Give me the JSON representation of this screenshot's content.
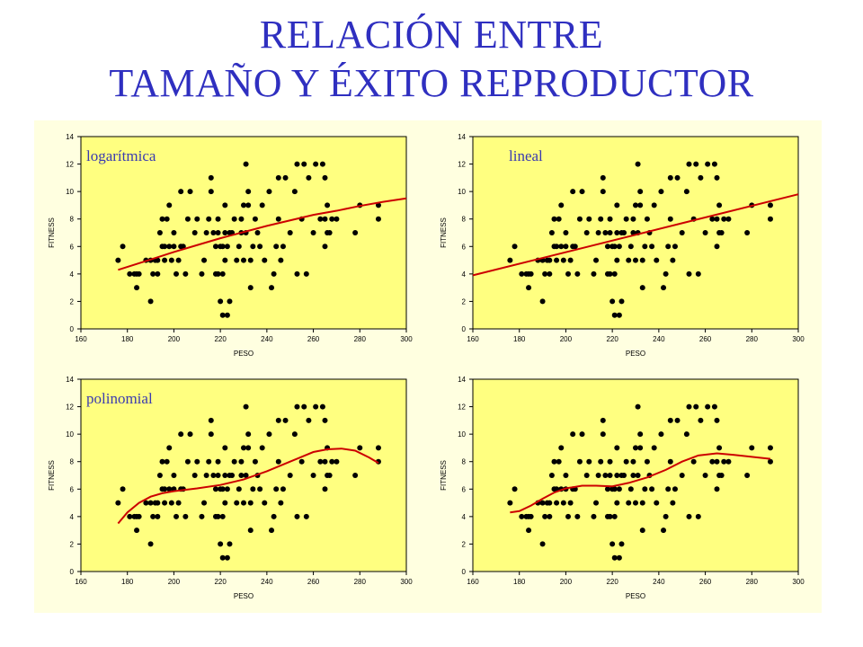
{
  "title": {
    "line1": "RELACIÓN ENTRE",
    "line2": "TAMAÑO Y ÉXITO REPRODUCTOR"
  },
  "colors": {
    "title": "#2f2fc0",
    "plot_background": "#ffff80",
    "panel_background": "#ffffe0",
    "points": "#000000",
    "fit_line": "#cc0000"
  },
  "scatter_points": [
    [
      176,
      5
    ],
    [
      178,
      6
    ],
    [
      181,
      4
    ],
    [
      183,
      4
    ],
    [
      184,
      3
    ],
    [
      184,
      4
    ],
    [
      185,
      4
    ],
    [
      188,
      5
    ],
    [
      190,
      2
    ],
    [
      190,
      5
    ],
    [
      191,
      4
    ],
    [
      192,
      5
    ],
    [
      193,
      4
    ],
    [
      193,
      5
    ],
    [
      194,
      7
    ],
    [
      195,
      6
    ],
    [
      195,
      8
    ],
    [
      196,
      5
    ],
    [
      196,
      6
    ],
    [
      197,
      8
    ],
    [
      198,
      6
    ],
    [
      198,
      9
    ],
    [
      199,
      5
    ],
    [
      200,
      6
    ],
    [
      200,
      7
    ],
    [
      201,
      4
    ],
    [
      202,
      5
    ],
    [
      203,
      6
    ],
    [
      203,
      10
    ],
    [
      204,
      6
    ],
    [
      205,
      4
    ],
    [
      206,
      8
    ],
    [
      207,
      10
    ],
    [
      209,
      7
    ],
    [
      210,
      8
    ],
    [
      212,
      4
    ],
    [
      213,
      5
    ],
    [
      214,
      7
    ],
    [
      215,
      8
    ],
    [
      216,
      10
    ],
    [
      216,
      11
    ],
    [
      217,
      7
    ],
    [
      218,
      4
    ],
    [
      218,
      6
    ],
    [
      219,
      4
    ],
    [
      219,
      7
    ],
    [
      219,
      8
    ],
    [
      220,
      2
    ],
    [
      220,
      6
    ],
    [
      221,
      1
    ],
    [
      221,
      4
    ],
    [
      221,
      6
    ],
    [
      222,
      5
    ],
    [
      222,
      7
    ],
    [
      222,
      9
    ],
    [
      223,
      1
    ],
    [
      223,
      6
    ],
    [
      224,
      2
    ],
    [
      224,
      7
    ],
    [
      225,
      7
    ],
    [
      226,
      8
    ],
    [
      227,
      5
    ],
    [
      228,
      6
    ],
    [
      229,
      7
    ],
    [
      229,
      8
    ],
    [
      230,
      5
    ],
    [
      230,
      9
    ],
    [
      231,
      7
    ],
    [
      231,
      12
    ],
    [
      232,
      9
    ],
    [
      232,
      10
    ],
    [
      233,
      3
    ],
    [
      233,
      5
    ],
    [
      234,
      6
    ],
    [
      235,
      8
    ],
    [
      236,
      7
    ],
    [
      237,
      6
    ],
    [
      238,
      9
    ],
    [
      239,
      5
    ],
    [
      241,
      10
    ],
    [
      242,
      3
    ],
    [
      243,
      4
    ],
    [
      244,
      6
    ],
    [
      245,
      8
    ],
    [
      245,
      11
    ],
    [
      246,
      5
    ],
    [
      247,
      6
    ],
    [
      248,
      11
    ],
    [
      250,
      7
    ],
    [
      252,
      10
    ],
    [
      253,
      4
    ],
    [
      253,
      12
    ],
    [
      255,
      8
    ],
    [
      256,
      12
    ],
    [
      257,
      4
    ],
    [
      258,
      11
    ],
    [
      260,
      7
    ],
    [
      261,
      12
    ],
    [
      263,
      8
    ],
    [
      264,
      12
    ],
    [
      265,
      11
    ],
    [
      265,
      8
    ],
    [
      265,
      6
    ],
    [
      266,
      7
    ],
    [
      266,
      9
    ],
    [
      267,
      7
    ],
    [
      268,
      8
    ],
    [
      270,
      8
    ],
    [
      278,
      7
    ],
    [
      280,
      9
    ],
    [
      288,
      8
    ],
    [
      288,
      9
    ]
  ],
  "chart_data": [
    {
      "type": "scatter",
      "title": "logarítmica",
      "xlabel": "PESO",
      "ylabel": "FITNESS",
      "xlim": [
        160,
        300
      ],
      "ylim": [
        0,
        14
      ],
      "x_ticks": [
        "160",
        "180",
        "200",
        "220",
        "240",
        "260",
        "280",
        "300"
      ],
      "y_ticks": [
        "0",
        "2",
        "4",
        "6",
        "8",
        "10",
        "12",
        "14"
      ],
      "fit": {
        "x": [
          176,
          190,
          200,
          210,
          220,
          230,
          240,
          250,
          260,
          270,
          280,
          290,
          300
        ],
        "y": [
          4.3,
          5.05,
          5.6,
          6.1,
          6.6,
          7.05,
          7.5,
          7.9,
          8.3,
          8.6,
          8.95,
          9.25,
          9.5
        ]
      }
    },
    {
      "type": "scatter",
      "title": "lineal",
      "xlabel": "PESO",
      "ylabel": "FITNESS",
      "xlim": [
        160,
        300
      ],
      "ylim": [
        0,
        14
      ],
      "x_ticks": [
        "160",
        "180",
        "200",
        "220",
        "240",
        "260",
        "280",
        "300"
      ],
      "y_ticks": [
        "0",
        "2",
        "4",
        "6",
        "8",
        "10",
        "12",
        "14"
      ],
      "fit": {
        "x": [
          160,
          300
        ],
        "y": [
          3.9,
          9.8
        ]
      }
    },
    {
      "type": "scatter",
      "title": "polinomial",
      "xlabel": "PESO",
      "ylabel": "FITNESS",
      "xlim": [
        160,
        300
      ],
      "ylim": [
        0,
        14
      ],
      "x_ticks": [
        "160",
        "180",
        "200",
        "220",
        "240",
        "260",
        "280",
        "300"
      ],
      "y_ticks": [
        "0",
        "2",
        "4",
        "6",
        "8",
        "10",
        "12",
        "14"
      ],
      "fit": {
        "x": [
          176,
          180,
          185,
          190,
          195,
          200,
          210,
          220,
          230,
          240,
          250,
          260,
          266,
          272,
          278,
          284,
          288
        ],
        "y": [
          3.5,
          4.3,
          5.0,
          5.45,
          5.7,
          5.85,
          6.05,
          6.3,
          6.7,
          7.3,
          8.0,
          8.7,
          8.9,
          8.95,
          8.8,
          8.3,
          7.9
        ]
      }
    },
    {
      "type": "scatter",
      "title": "",
      "xlabel": "PESO",
      "ylabel": "FITNESS",
      "xlim": [
        160,
        300
      ],
      "ylim": [
        0,
        14
      ],
      "x_ticks": [
        "160",
        "180",
        "200",
        "220",
        "240",
        "260",
        "280",
        "300"
      ],
      "y_ticks": [
        "0",
        "2",
        "4",
        "6",
        "8",
        "10",
        "12",
        "14"
      ],
      "fit": {
        "x": [
          176,
          180,
          185,
          190,
          195,
          200,
          207,
          213,
          220,
          227,
          235,
          243,
          250,
          257,
          265,
          272,
          280,
          288
        ],
        "y": [
          4.3,
          4.4,
          4.8,
          5.3,
          5.75,
          6.05,
          6.25,
          6.25,
          6.2,
          6.45,
          6.85,
          7.4,
          8.0,
          8.45,
          8.6,
          8.5,
          8.35,
          8.2
        ]
      }
    }
  ]
}
